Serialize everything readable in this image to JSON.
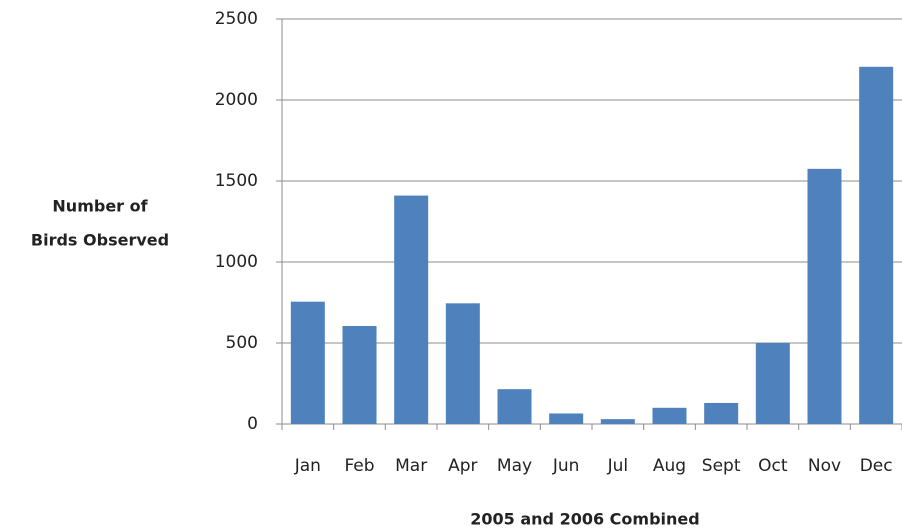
{
  "chart_data": {
    "type": "bar",
    "y_label": [
      "Number of",
      "Birds Observed"
    ],
    "x_label": "2005 and 2006 Combined",
    "categories": [
      "Jan",
      "Feb",
      "Mar",
      "Apr",
      "May",
      "Jun",
      "Jul",
      "Aug",
      "Sept",
      "Oct",
      "Nov",
      "Dec"
    ],
    "values": [
      755,
      605,
      1410,
      745,
      215,
      65,
      30,
      100,
      130,
      500,
      1575,
      2205
    ],
    "color": "#4f81bd",
    "ylim": [
      0,
      2500
    ],
    "yticks": [
      0,
      500,
      1000,
      1500,
      2000,
      2500
    ],
    "grid": true
  }
}
